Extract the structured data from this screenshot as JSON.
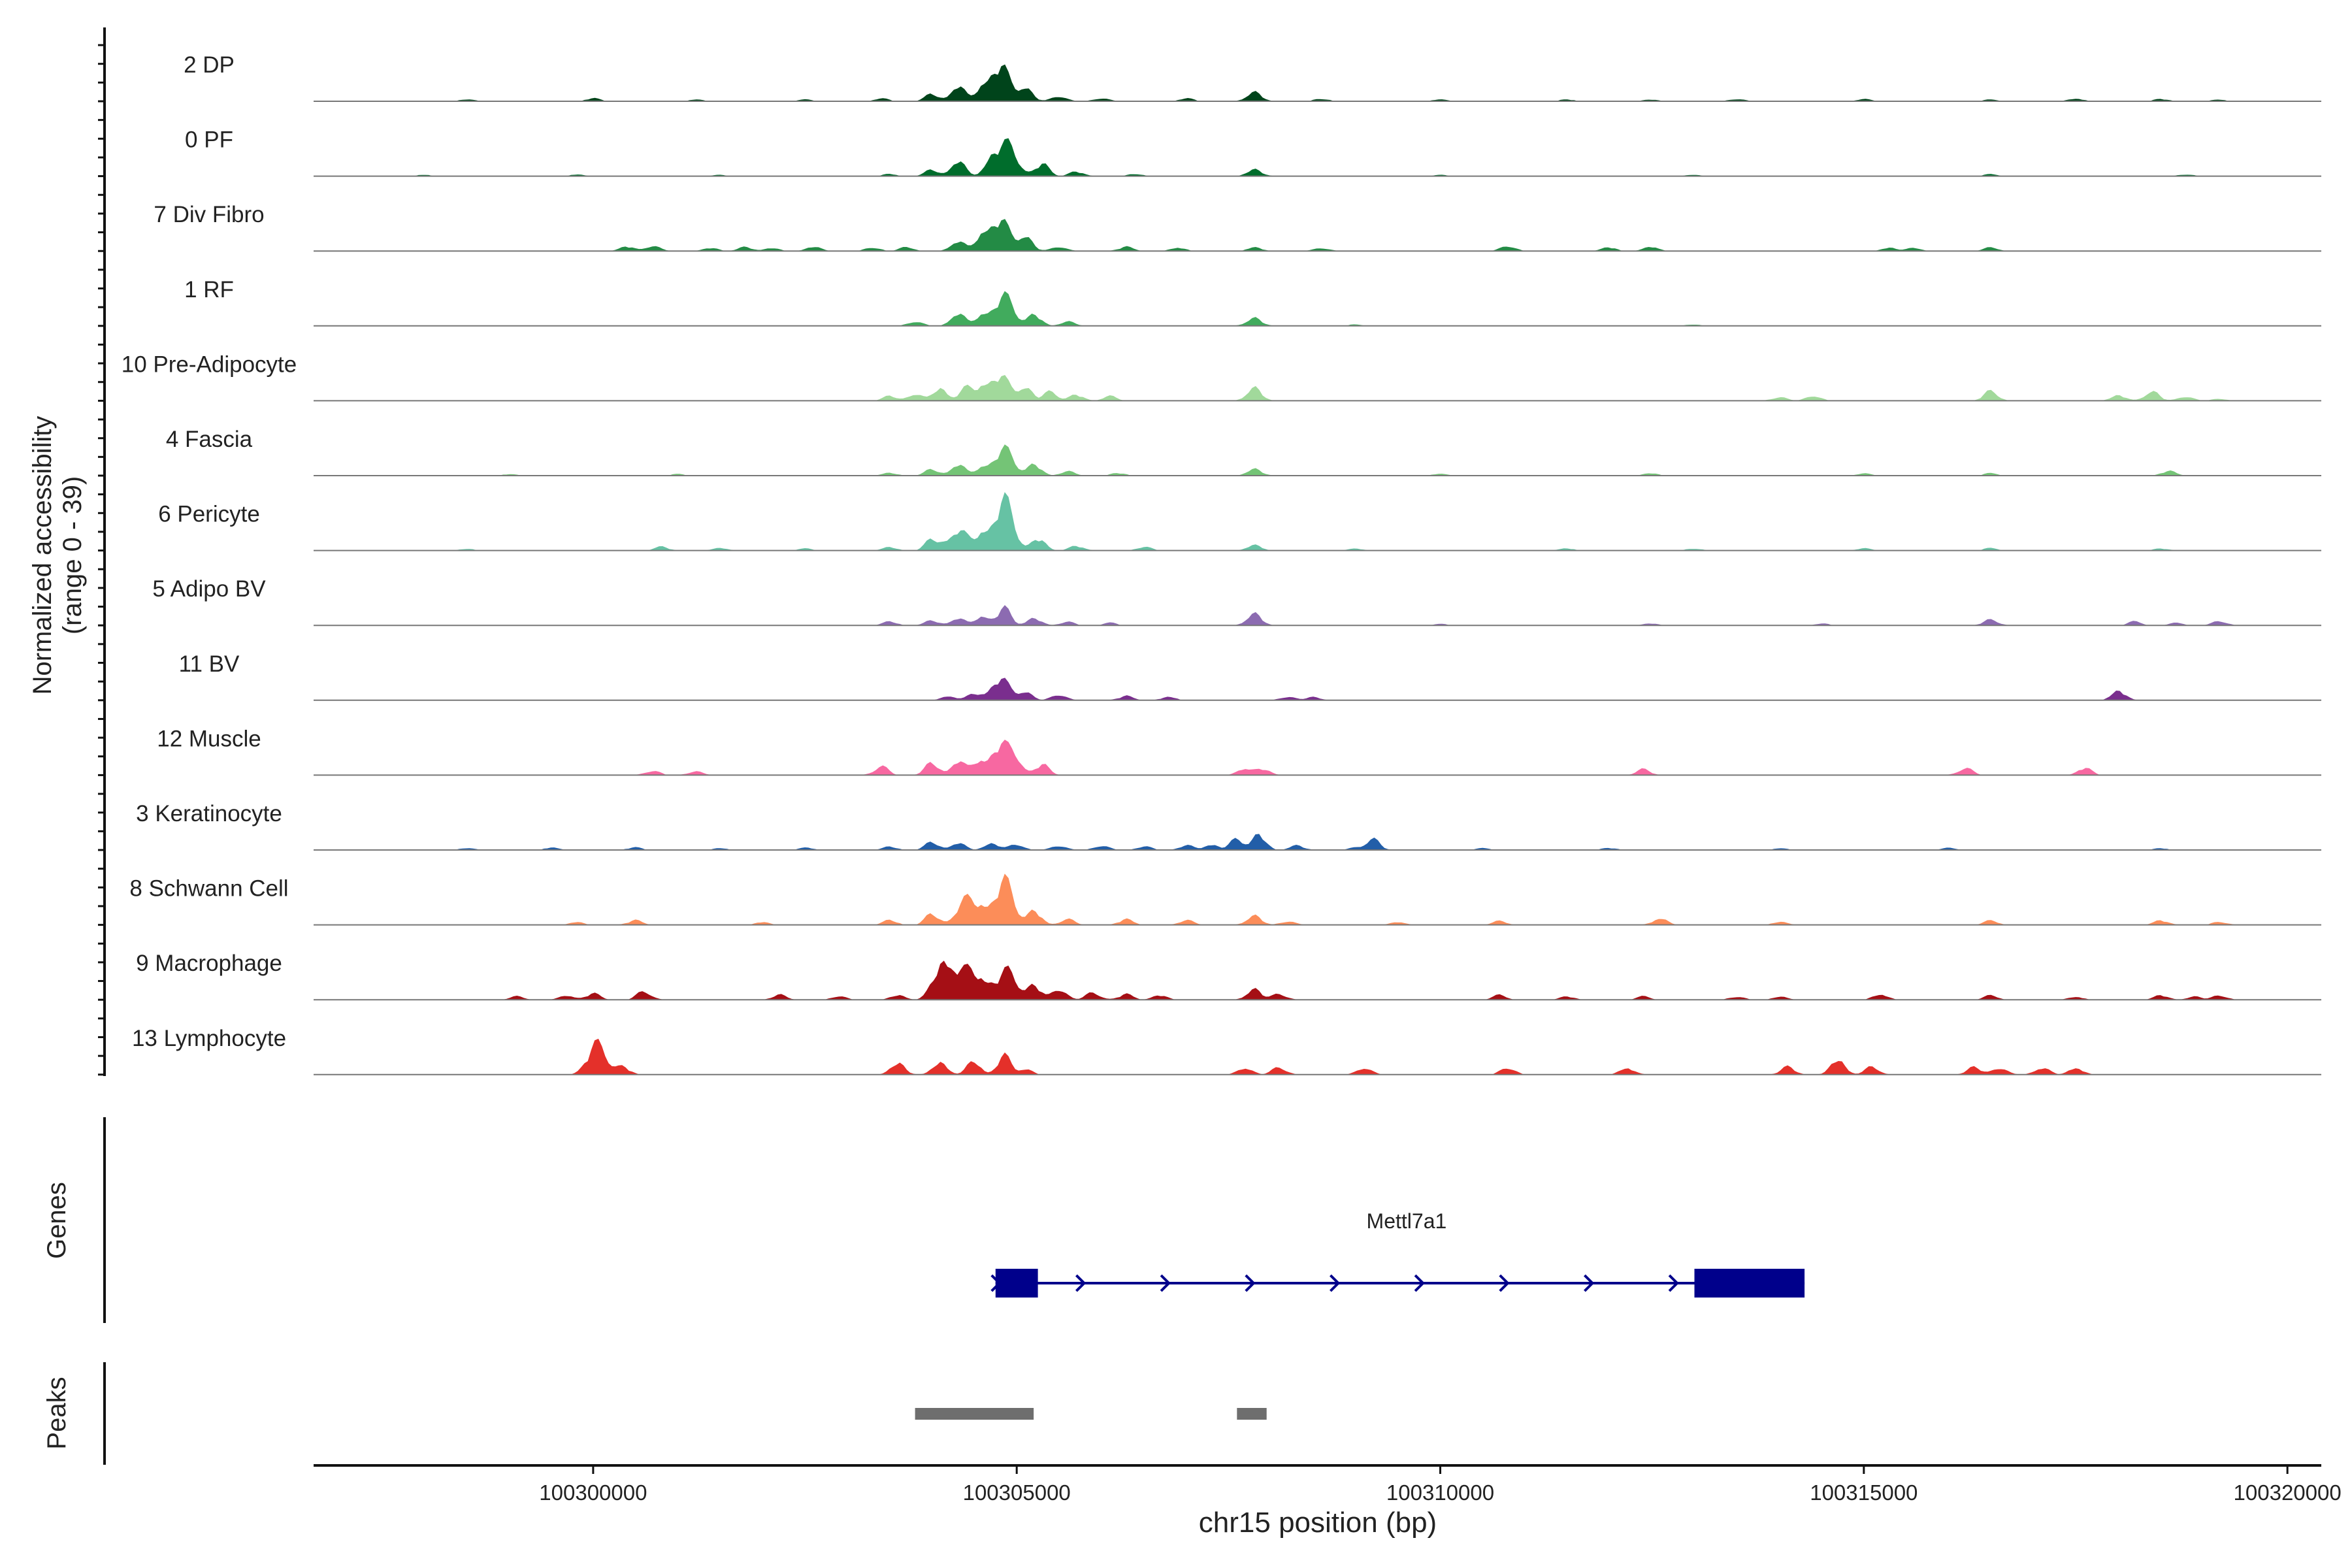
{
  "chart_data": {
    "type": "area",
    "title": "",
    "chromosome": "chr15",
    "xlabel": "chr15 position (bp)",
    "ylabel": "Normalized accessibility\n(range 0 - 39)",
    "xlim": [
      100296700,
      100320400
    ],
    "ylim": [
      0,
      39
    ],
    "x_ticks": [
      100300000,
      100305000,
      100310000,
      100315000,
      100320000
    ],
    "x_tick_labels": [
      "100300000",
      "100305000",
      "100310000",
      "100315000",
      "100320000"
    ],
    "series": [
      {
        "name": "2 DP",
        "label": "2 DP",
        "color": "#00441b",
        "peaks": [
          [
            100298500,
            0.6
          ],
          [
            100300000,
            0.9
          ],
          [
            100301200,
            0.5
          ],
          [
            100302500,
            0.6
          ],
          [
            100303400,
            0.9
          ],
          [
            100304000,
            2.3
          ],
          [
            100304300,
            5.5
          ],
          [
            100304600,
            4.5
          ],
          [
            100304800,
            11.5
          ],
          [
            100305100,
            5.0
          ],
          [
            100305500,
            1.8
          ],
          [
            100306000,
            1.0
          ],
          [
            100307000,
            0.9
          ],
          [
            100307800,
            3.5
          ],
          [
            100308600,
            0.8
          ],
          [
            100310000,
            0.6
          ],
          [
            100311500,
            0.5
          ],
          [
            100312500,
            0.5
          ],
          [
            100313500,
            0.7
          ],
          [
            100315000,
            0.6
          ],
          [
            100316500,
            0.5
          ],
          [
            100317500,
            0.9
          ],
          [
            100318500,
            0.7
          ],
          [
            100319200,
            0.5
          ]
        ]
      },
      {
        "name": "0 PF",
        "label": "0 PF",
        "color": "#006d2c",
        "peaks": [
          [
            100298000,
            0.4
          ],
          [
            100299800,
            0.5
          ],
          [
            100301500,
            0.4
          ],
          [
            100303500,
            0.6
          ],
          [
            100304000,
            2.0
          ],
          [
            100304300,
            5.5
          ],
          [
            100304700,
            6.0
          ],
          [
            100304900,
            10.0
          ],
          [
            100305300,
            4.0
          ],
          [
            100305700,
            1.5
          ],
          [
            100306400,
            0.7
          ],
          [
            100307800,
            2.5
          ],
          [
            100310000,
            0.4
          ],
          [
            100313000,
            0.4
          ],
          [
            100316500,
            0.6
          ],
          [
            100318800,
            0.5
          ]
        ]
      },
      {
        "name": "7 Div Fibro",
        "label": "7 Div Fibro",
        "color": "#238b45",
        "peaks": [
          [
            100300400,
            1.5
          ],
          [
            100300700,
            1.8
          ],
          [
            100301400,
            1.0
          ],
          [
            100301800,
            1.2
          ],
          [
            100302100,
            1.0
          ],
          [
            100302600,
            1.4
          ],
          [
            100303300,
            1.2
          ],
          [
            100303700,
            1.4
          ],
          [
            100304300,
            3.5
          ],
          [
            100304600,
            5.5
          ],
          [
            100304800,
            10.0
          ],
          [
            100305100,
            5.5
          ],
          [
            100305500,
            1.5
          ],
          [
            100306300,
            1.5
          ],
          [
            100306900,
            1.2
          ],
          [
            100307800,
            1.3
          ],
          [
            100308600,
            1.0
          ],
          [
            100310800,
            1.8
          ],
          [
            100312000,
            1.2
          ],
          [
            100312500,
            1.5
          ],
          [
            100315300,
            1.2
          ],
          [
            100315600,
            1.0
          ],
          [
            100316500,
            1.2
          ]
        ]
      },
      {
        "name": "1 RF",
        "label": "1 RF",
        "color": "#41ab5d",
        "peaks": [
          [
            100303800,
            1.5
          ],
          [
            100304300,
            4.5
          ],
          [
            100304600,
            4.0
          ],
          [
            100304850,
            9.5
          ],
          [
            100305200,
            4.0
          ],
          [
            100305600,
            1.5
          ],
          [
            100307800,
            3.0
          ],
          [
            100309000,
            0.4
          ],
          [
            100313000,
            0.4
          ]
        ]
      },
      {
        "name": "10 Pre-Adipocyte",
        "label": "10 Pre-Adipocyte",
        "color": "#a1d99b",
        "peaks": [
          [
            100303500,
            1.5
          ],
          [
            100303800,
            2.5
          ],
          [
            100304100,
            4.5
          ],
          [
            100304400,
            4.0
          ],
          [
            100304600,
            4.5
          ],
          [
            100304800,
            8.0
          ],
          [
            100305100,
            5.0
          ],
          [
            100305400,
            3.0
          ],
          [
            100305700,
            2.0
          ],
          [
            100306100,
            1.5
          ],
          [
            100307800,
            5.0
          ],
          [
            100314000,
            1.2
          ],
          [
            100314400,
            1.8
          ],
          [
            100316500,
            3.5
          ],
          [
            100318000,
            2.0
          ],
          [
            100318400,
            3.5
          ],
          [
            100318800,
            1.5
          ],
          [
            100319200,
            0.6
          ]
        ]
      },
      {
        "name": "4 Fascia",
        "label": "4 Fascia",
        "color": "#74c476",
        "peaks": [
          [
            100299000,
            0.4
          ],
          [
            100301000,
            0.5
          ],
          [
            100303500,
            0.8
          ],
          [
            100304000,
            2.0
          ],
          [
            100304300,
            4.0
          ],
          [
            100304600,
            3.0
          ],
          [
            100304850,
            8.5
          ],
          [
            100305200,
            4.0
          ],
          [
            100305600,
            1.5
          ],
          [
            100306200,
            0.8
          ],
          [
            100307800,
            2.5
          ],
          [
            100310000,
            0.6
          ],
          [
            100312500,
            0.8
          ],
          [
            100315000,
            0.6
          ],
          [
            100316500,
            0.8
          ],
          [
            100318600,
            1.5
          ]
        ]
      },
      {
        "name": "6 Pericyte",
        "label": "6 Pericyte",
        "color": "#66c2a4",
        "peaks": [
          [
            100298500,
            0.5
          ],
          [
            100300800,
            1.2
          ],
          [
            100301500,
            0.9
          ],
          [
            100302500,
            0.7
          ],
          [
            100303500,
            1.0
          ],
          [
            100304000,
            3.5
          ],
          [
            100304300,
            7.0
          ],
          [
            100304600,
            6.0
          ],
          [
            100304850,
            16.0
          ],
          [
            100305250,
            4.0
          ],
          [
            100305700,
            1.5
          ],
          [
            100306500,
            1.2
          ],
          [
            100307800,
            2.0
          ],
          [
            100309000,
            0.6
          ],
          [
            100311500,
            0.6
          ],
          [
            100313000,
            0.6
          ],
          [
            100315000,
            0.6
          ],
          [
            100316500,
            0.8
          ],
          [
            100318500,
            0.6
          ]
        ]
      },
      {
        "name": "5 Adipo BV",
        "label": "5 Adipo BV",
        "color": "#8c6bb1",
        "peaks": [
          [
            100303500,
            1.2
          ],
          [
            100304000,
            1.5
          ],
          [
            100304300,
            2.5
          ],
          [
            100304600,
            3.5
          ],
          [
            100304850,
            5.5
          ],
          [
            100305200,
            2.5
          ],
          [
            100305600,
            1.2
          ],
          [
            100306100,
            0.8
          ],
          [
            100307800,
            4.5
          ],
          [
            100310000,
            0.5
          ],
          [
            100312500,
            0.6
          ],
          [
            100314500,
            0.5
          ],
          [
            100316500,
            2.0
          ],
          [
            100318200,
            1.2
          ],
          [
            100318700,
            0.8
          ],
          [
            100319200,
            1.5
          ]
        ]
      },
      {
        "name": "11 BV",
        "label": "11 BV",
        "color": "#7a2e8e",
        "peaks": [
          [
            100304200,
            1.5
          ],
          [
            100304500,
            2.0
          ],
          [
            100304800,
            7.0
          ],
          [
            100305100,
            3.0
          ],
          [
            100305500,
            2.0
          ],
          [
            100306300,
            1.5
          ],
          [
            100306800,
            1.2
          ],
          [
            100308200,
            1.2
          ],
          [
            100308500,
            1.0
          ],
          [
            100318000,
            3.5
          ]
        ]
      },
      {
        "name": "12 Muscle",
        "label": "12 Muscle",
        "color": "#f768a1",
        "peaks": [
          [
            100300700,
            1.5
          ],
          [
            100301200,
            1.2
          ],
          [
            100303400,
            3.0
          ],
          [
            100304000,
            4.0
          ],
          [
            100304300,
            5.0
          ],
          [
            100304550,
            4.5
          ],
          [
            100304800,
            10.0
          ],
          [
            100305000,
            5.0
          ],
          [
            100305300,
            3.5
          ],
          [
            100307700,
            2.5
          ],
          [
            100307900,
            2.0
          ],
          [
            100312400,
            1.8
          ],
          [
            100316200,
            2.5
          ],
          [
            100317600,
            2.5
          ]
        ]
      },
      {
        "name": "3 Keratinocyte",
        "label": "3 Keratinocyte",
        "color": "#225ea8",
        "peaks": [
          [
            100298500,
            0.6
          ],
          [
            100299500,
            0.7
          ],
          [
            100300500,
            0.8
          ],
          [
            100301500,
            0.6
          ],
          [
            100302500,
            0.8
          ],
          [
            100303500,
            1.0
          ],
          [
            100304000,
            2.5
          ],
          [
            100304300,
            2.5
          ],
          [
            100304700,
            2.5
          ],
          [
            100305000,
            2.0
          ],
          [
            100305500,
            1.5
          ],
          [
            100306000,
            1.5
          ],
          [
            100306500,
            1.2
          ],
          [
            100307000,
            1.5
          ],
          [
            100307300,
            2.0
          ],
          [
            100307600,
            3.5
          ],
          [
            100307850,
            5.5
          ],
          [
            100308300,
            1.5
          ],
          [
            100309000,
            0.8
          ],
          [
            100309200,
            3.5
          ],
          [
            100310500,
            0.6
          ],
          [
            100312000,
            0.6
          ],
          [
            100314000,
            0.5
          ],
          [
            100316000,
            0.6
          ],
          [
            100318500,
            0.5
          ]
        ]
      },
      {
        "name": "8 Schwann Cell",
        "label": "8 Schwann Cell",
        "color": "#fc8d59",
        "peaks": [
          [
            100299800,
            1.0
          ],
          [
            100300500,
            1.5
          ],
          [
            100302000,
            1.0
          ],
          [
            100303500,
            1.5
          ],
          [
            100304000,
            3.5
          ],
          [
            100304400,
            8.0
          ],
          [
            100304600,
            5.0
          ],
          [
            100304850,
            14.0
          ],
          [
            100305200,
            5.0
          ],
          [
            100305600,
            2.0
          ],
          [
            100306300,
            2.0
          ],
          [
            100307000,
            1.5
          ],
          [
            100307800,
            3.5
          ],
          [
            100308200,
            1.2
          ],
          [
            100309500,
            1.0
          ],
          [
            100310700,
            1.2
          ],
          [
            100312600,
            2.5
          ],
          [
            100314000,
            1.0
          ],
          [
            100316500,
            1.5
          ],
          [
            100318500,
            1.5
          ],
          [
            100319200,
            1.0
          ]
        ]
      },
      {
        "name": "9 Macrophage",
        "label": "9 Macrophage",
        "color": "#a50f15",
        "peaks": [
          [
            100299100,
            1.0
          ],
          [
            100299700,
            1.5
          ],
          [
            100300000,
            2.0
          ],
          [
            100300600,
            3.0
          ],
          [
            100302200,
            1.5
          ],
          [
            100302900,
            1.2
          ],
          [
            100303600,
            1.5
          ],
          [
            100304150,
            14.0
          ],
          [
            100304400,
            7.0
          ],
          [
            100304600,
            6.5
          ],
          [
            100304900,
            9.0
          ],
          [
            100305200,
            5.0
          ],
          [
            100305500,
            4.0
          ],
          [
            100305900,
            2.5
          ],
          [
            100306300,
            2.0
          ],
          [
            100306700,
            1.5
          ],
          [
            100307800,
            4.0
          ],
          [
            100308100,
            2.0
          ],
          [
            100310700,
            1.5
          ],
          [
            100311500,
            1.0
          ],
          [
            100312400,
            1.0
          ],
          [
            100313500,
            1.0
          ],
          [
            100314000,
            1.0
          ],
          [
            100315200,
            2.0
          ],
          [
            100316500,
            1.5
          ],
          [
            100317500,
            1.0
          ],
          [
            100318500,
            1.5
          ],
          [
            100318900,
            1.0
          ],
          [
            100319200,
            1.5
          ]
        ]
      },
      {
        "name": "13 Lymphocyte",
        "label": "13 Lymphocyte",
        "color": "#e4302a",
        "peaks": [
          [
            100300050,
            10.0
          ],
          [
            100300350,
            2.5
          ],
          [
            100303600,
            4.0
          ],
          [
            100304100,
            4.5
          ],
          [
            100304500,
            4.5
          ],
          [
            100304850,
            6.0
          ],
          [
            100305100,
            2.0
          ],
          [
            100307700,
            2.5
          ],
          [
            100308100,
            2.5
          ],
          [
            100309100,
            2.5
          ],
          [
            100310800,
            2.5
          ],
          [
            100312200,
            2.5
          ],
          [
            100314100,
            2.5
          ],
          [
            100314700,
            5.5
          ],
          [
            100315100,
            2.5
          ],
          [
            100316300,
            2.5
          ],
          [
            100316600,
            2.5
          ],
          [
            100317100,
            2.5
          ],
          [
            100317500,
            2.5
          ]
        ]
      }
    ],
    "genes_panel": {
      "label": "Genes",
      "genes": [
        {
          "name": "Mettl7a1",
          "strand": "+",
          "start": 100304750,
          "end": 100314300,
          "exons": [
            [
              100304750,
              100305250
            ],
            [
              100313000,
              100314300
            ]
          ],
          "color": "#00008b"
        }
      ]
    },
    "peaks_panel": {
      "label": "Peaks",
      "peaks": [
        [
          100303800,
          100305200
        ],
        [
          100307600,
          100307950
        ]
      ],
      "color": "#6e6e6e"
    }
  }
}
